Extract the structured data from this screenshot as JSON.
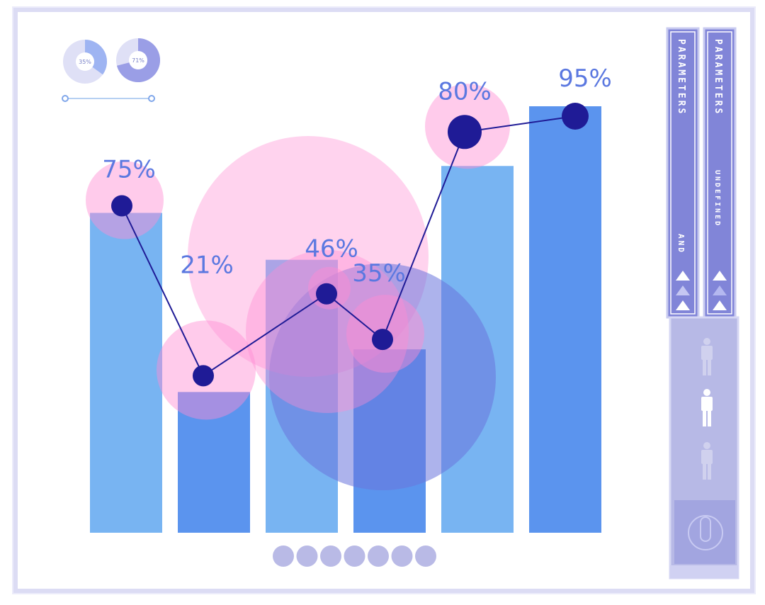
{
  "chart_data": {
    "type": "bar",
    "categories": [
      "",
      "",
      "",
      "",
      "",
      ""
    ],
    "series": [
      {
        "values": [
          75,
          33,
          64,
          43,
          86,
          100
        ]
      }
    ],
    "line_values": [
      75,
      21,
      46,
      35,
      80,
      95
    ],
    "data_labels": [
      "75%",
      "21%",
      "46%",
      "35%",
      "80%",
      "95%"
    ],
    "bubble_sizes": [
      55,
      70,
      30,
      55,
      60,
      0
    ],
    "ylim": [
      0,
      100
    ],
    "grid": false,
    "legend": "none"
  },
  "mini_donuts": [
    {
      "label": "35%",
      "value": 35
    },
    {
      "label": "71%",
      "value": 71
    }
  ],
  "side_panel": {
    "column_a": {
      "title": "PARAMETERS",
      "subtitle": "AND"
    },
    "column_b": {
      "title": "PARAMETERS",
      "subtitle": "UNDEFINED"
    },
    "figures": [
      "person-icon",
      "person-icon",
      "person-icon"
    ]
  },
  "pager": {
    "dot_count": 7
  },
  "colors": {
    "bar_light": "#78b4f2",
    "bar_dark": "#5b94ee",
    "line": "#1f1b96",
    "bubble_pink": "#ff8cd2",
    "bubble_blue": "#6a75dc",
    "panel": "#8185d8",
    "frame": "#d8d8f2"
  }
}
